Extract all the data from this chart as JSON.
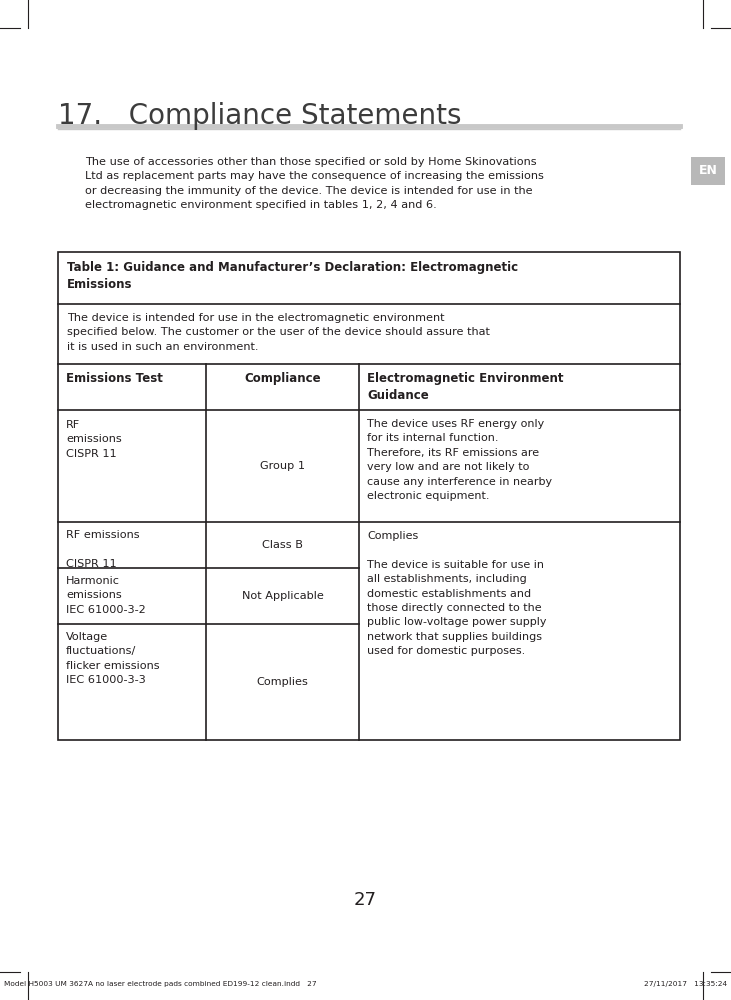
{
  "page_number": "27",
  "chapter_title": "17.   Compliance Statements",
  "footer_left": "Model H5003 UM 3627A no laser electrode pads combined ED199-12 clean.indd   27",
  "footer_right": "27/11/2017   13:35:24",
  "en_label": "EN",
  "intro_text": "The use of accessories other than those specified or sold by Home Skinovations\nLtd as replacement parts may have the consequence of increasing the emissions\nor decreasing the immunity of the device. The device is intended for use in the\nelectromagnetic environment specified in tables 1, 2, 4 and 6.",
  "table_title": "Table 1: Guidance and Manufacturer’s Declaration: Electromagnetic\nEmissions",
  "table_intro": "The device is intended for use in the electromagnetic environment\nspecified below. The customer or the user of the device should assure that\nit is used in such an environment.",
  "col_header_1": "Emissions Test",
  "col_header_2": "Compliance",
  "col_header_3": "Electromagnetic Environment\nGuidance",
  "row0_test": "RF\nemissions\nCISPR 11",
  "row0_compliance": "Group 1",
  "row0_guidance": "The device uses RF energy only\nfor its internal function.\nTherefore, its RF emissions are\nvery low and are not likely to\ncause any interference in nearby\nelectronic equipment.",
  "row1_test": "RF emissions\n\nCISPR 11",
  "row1_compliance": "Class B",
  "row1_guidance": "Complies",
  "row2_test": "Harmonic\nemissions\nIEC 61000-3-2",
  "row2_compliance": "Not Applicable",
  "row2_guidance": "The device is suitable for use in\nall establishments, including\ndomestic establishments and\nthose directly connected to the\npublic low-voltage power supply\nnetwork that supplies buildings\nused for domestic purposes.",
  "row3_test": "Voltage\nfluctuations/\nflicker emissions\nIEC 61000-3-3",
  "row3_compliance": "Complies",
  "bg_color": "#ffffff",
  "text_color": "#231f20",
  "gray_color": "#c8c8c8",
  "mark_color": "#231f20",
  "en_bg": "#b8b8b8"
}
